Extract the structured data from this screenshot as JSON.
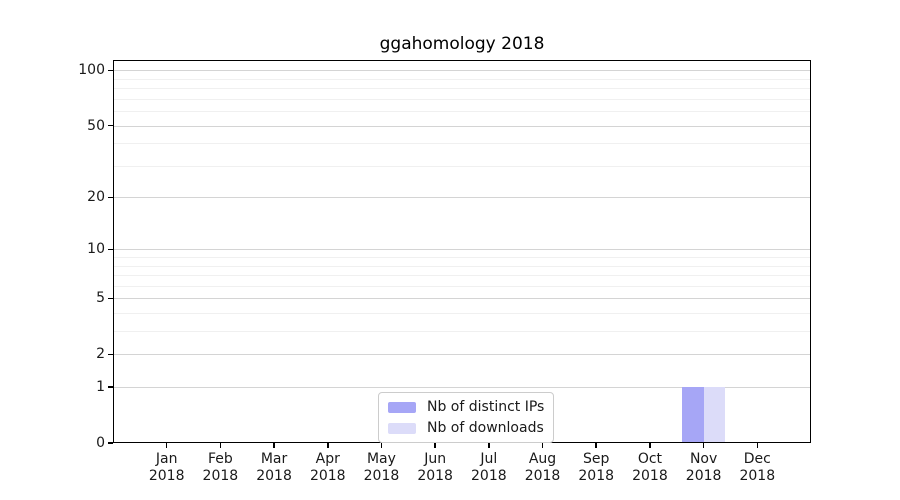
{
  "chart_data": {
    "type": "bar",
    "title": "ggahomology 2018",
    "categories": [
      "Jan 2018",
      "Feb 2018",
      "Mar 2018",
      "Apr 2018",
      "May 2018",
      "Jun 2018",
      "Jul 2018",
      "Aug 2018",
      "Sep 2018",
      "Oct 2018",
      "Nov 2018",
      "Dec 2018"
    ],
    "series": [
      {
        "name": "Nb of distinct IPs",
        "color": "#a6a6f6",
        "values": [
          0,
          0,
          0,
          0,
          0,
          0,
          0,
          0,
          0,
          0,
          1,
          0
        ]
      },
      {
        "name": "Nb of downloads",
        "color": "#dcdcf9",
        "values": [
          0,
          0,
          0,
          0,
          0,
          0,
          0,
          0,
          0,
          0,
          1,
          0
        ]
      }
    ],
    "xlabel": "",
    "ylabel": "",
    "yscale": "log1p",
    "ylim": [
      0,
      114
    ],
    "y_ticks": [
      0,
      1,
      2,
      5,
      10,
      20,
      50,
      100
    ],
    "y_minor_ticks": [
      3,
      4,
      6,
      7,
      8,
      9,
      30,
      40,
      60,
      70,
      80,
      90
    ],
    "grid": true,
    "legend_position": "lower center"
  }
}
